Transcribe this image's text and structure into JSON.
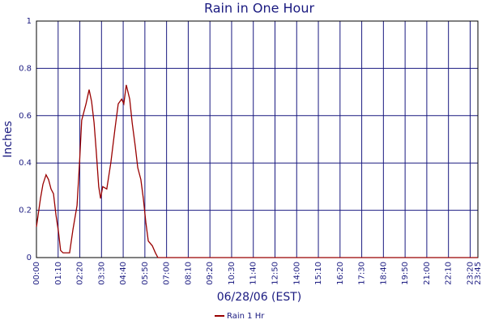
{
  "chart_data": {
    "type": "line",
    "title": "Rain in One Hour",
    "x_label": "06/28/06 (EST)",
    "y_label": "Inches",
    "xlim": [
      0,
      1425
    ],
    "ylim": [
      0,
      1
    ],
    "yticks": [
      0,
      0.2,
      0.4,
      0.6,
      0.8,
      1
    ],
    "xticks": [
      {
        "value": 0,
        "label": "00:00"
      },
      {
        "value": 70,
        "label": "01:10"
      },
      {
        "value": 140,
        "label": "02:20"
      },
      {
        "value": 210,
        "label": "03:30"
      },
      {
        "value": 280,
        "label": "04:40"
      },
      {
        "value": 350,
        "label": "05:50"
      },
      {
        "value": 420,
        "label": "07:00"
      },
      {
        "value": 490,
        "label": "08:10"
      },
      {
        "value": 560,
        "label": "09:20"
      },
      {
        "value": 630,
        "label": "10:30"
      },
      {
        "value": 700,
        "label": "11:40"
      },
      {
        "value": 770,
        "label": "12:50"
      },
      {
        "value": 840,
        "label": "14:00"
      },
      {
        "value": 910,
        "label": "15:10"
      },
      {
        "value": 980,
        "label": "16:20"
      },
      {
        "value": 1050,
        "label": "17:30"
      },
      {
        "value": 1120,
        "label": "18:40"
      },
      {
        "value": 1190,
        "label": "19:50"
      },
      {
        "value": 1260,
        "label": "21:00"
      },
      {
        "value": 1330,
        "label": "22:10"
      },
      {
        "value": 1400,
        "label": "23:20"
      },
      {
        "value": 1425,
        "label": "23:45"
      }
    ],
    "grid": true,
    "legend": "bottom",
    "x": [
      0,
      13,
      21,
      31,
      39,
      47,
      55,
      63,
      71,
      78,
      86,
      107,
      118,
      131,
      139,
      146,
      160,
      170,
      178,
      186,
      193,
      201,
      207,
      214,
      227,
      240,
      254,
      264,
      275,
      282,
      290,
      301,
      309,
      319,
      327,
      337,
      345,
      353,
      361,
      374,
      384,
      392,
      1425
    ],
    "series": [
      {
        "name": "Rain 1 Hr",
        "color": "#990000",
        "values": [
          0.13,
          0.25,
          0.31,
          0.35,
          0.33,
          0.29,
          0.27,
          0.18,
          0.11,
          0.03,
          0.02,
          0.02,
          0.12,
          0.22,
          0.4,
          0.58,
          0.65,
          0.71,
          0.66,
          0.57,
          0.45,
          0.3,
          0.25,
          0.3,
          0.29,
          0.4,
          0.55,
          0.65,
          0.67,
          0.65,
          0.73,
          0.67,
          0.57,
          0.47,
          0.38,
          0.33,
          0.25,
          0.15,
          0.07,
          0.05,
          0.02,
          0,
          0
        ]
      }
    ]
  }
}
